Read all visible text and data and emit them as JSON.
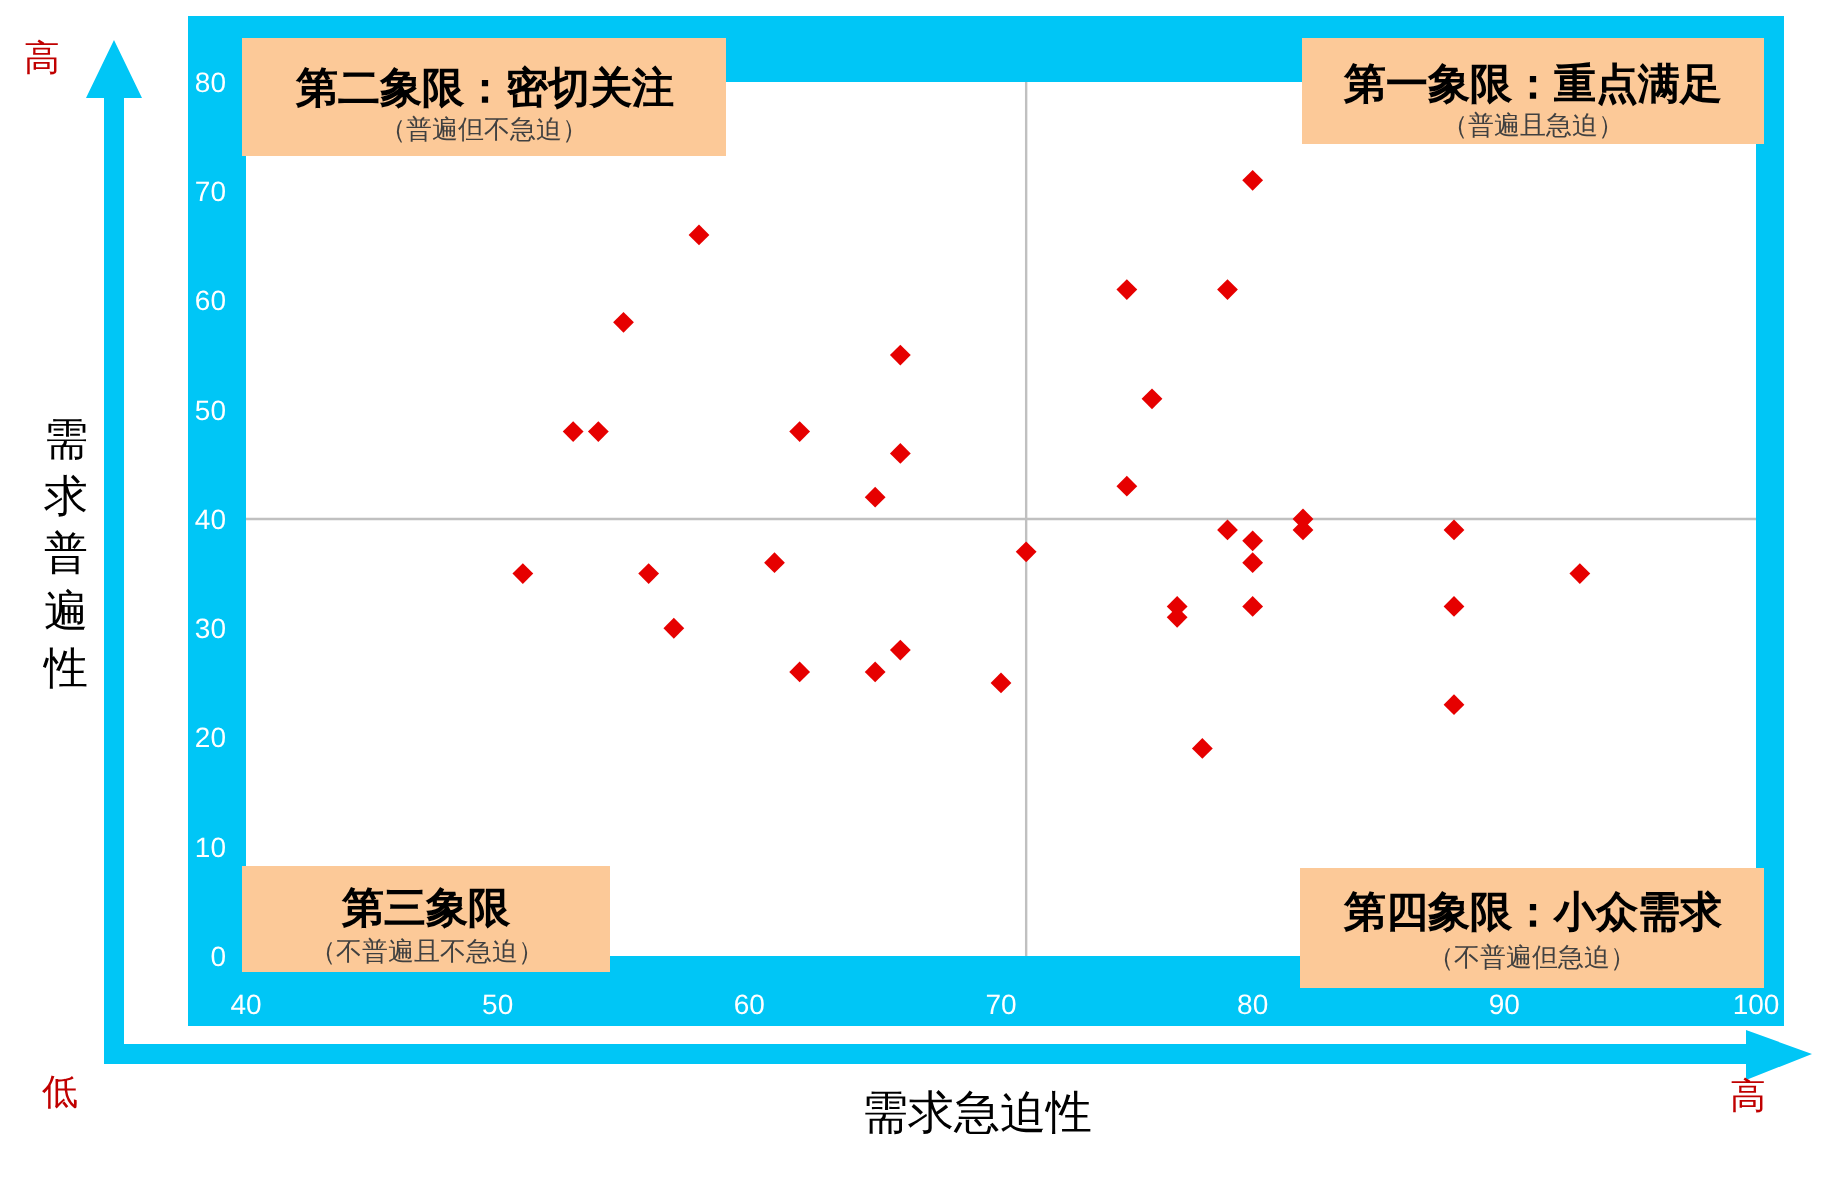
{
  "chart_data": {
    "type": "scatter",
    "xlabel": "需求急迫性",
    "ylabel": "需求普遍性",
    "x": [
      51,
      53,
      54,
      55,
      56,
      57,
      58,
      61,
      62,
      62,
      65,
      65,
      66,
      66,
      66,
      70,
      71,
      75,
      75,
      76,
      77,
      77,
      78,
      79,
      79,
      80,
      80,
      80,
      80,
      82,
      82,
      88,
      88,
      88,
      93
    ],
    "series": [
      {
        "color": "#e60000",
        "values": [
          35,
          48,
          48,
          58,
          35,
          30,
          66,
          36,
          48,
          26,
          42,
          26,
          55,
          46,
          28,
          25,
          37,
          61,
          43,
          51,
          32,
          31,
          19,
          61,
          39,
          71,
          38,
          36,
          32,
          40,
          39,
          39,
          32,
          23,
          35
        ]
      }
    ],
    "marker": "diamond",
    "xlim": [
      40,
      100
    ],
    "ylim": [
      0,
      80
    ],
    "xticks": [
      40,
      50,
      60,
      70,
      80,
      90,
      100
    ],
    "yticks": [
      0,
      10,
      20,
      30,
      40,
      50,
      60,
      70,
      80
    ],
    "ref_lines": [
      {
        "axis": "x",
        "value": 71,
        "color": "#c0c0c0"
      },
      {
        "axis": "y",
        "value": 40,
        "color": "#c0c0c0"
      }
    ],
    "annotations": [
      "高",
      "第二象限：密切关注",
      "（普遍但不急迫）",
      "第一象限：重点满足",
      "（普遍且急迫）",
      "第三象限",
      "（不普遍且不急迫）",
      "第四象限：小众需求",
      "（不普遍但急迫）",
      "低",
      "高"
    ]
  }
}
